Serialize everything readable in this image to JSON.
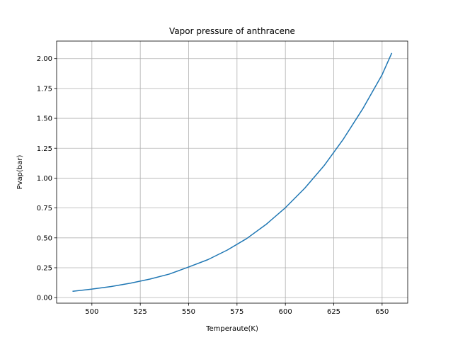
{
  "chart_data": {
    "type": "line",
    "title": "Vapor pressure of anthracene",
    "xlabel": "Temperaute(K)",
    "ylabel": "Pvap(bar)",
    "xlim": [
      481.775,
      663.225
    ],
    "ylim": [
      -0.0465,
      2.1465
    ],
    "xticks": [
      500,
      525,
      550,
      575,
      600,
      625,
      650
    ],
    "xtick_labels": [
      "500",
      "525",
      "550",
      "575",
      "600",
      "625",
      "650"
    ],
    "yticks": [
      0.0,
      0.25,
      0.5,
      0.75,
      1.0,
      1.25,
      1.5,
      1.75,
      2.0
    ],
    "ytick_labels": [
      "0.00",
      "0.25",
      "0.50",
      "0.75",
      "1.00",
      "1.25",
      "1.50",
      "1.75",
      "2.00"
    ],
    "grid": true,
    "series": [
      {
        "color": "#1f77b4",
        "x": [
          490,
          500,
          510,
          520,
          530,
          540,
          550,
          560,
          570,
          580,
          590,
          600,
          610,
          620,
          630,
          640,
          650,
          655
        ],
        "y": [
          0.053,
          0.071,
          0.093,
          0.121,
          0.155,
          0.197,
          0.256,
          0.318,
          0.398,
          0.494,
          0.612,
          0.752,
          0.915,
          1.104,
          1.327,
          1.58,
          1.865,
          2.047
        ]
      }
    ]
  }
}
